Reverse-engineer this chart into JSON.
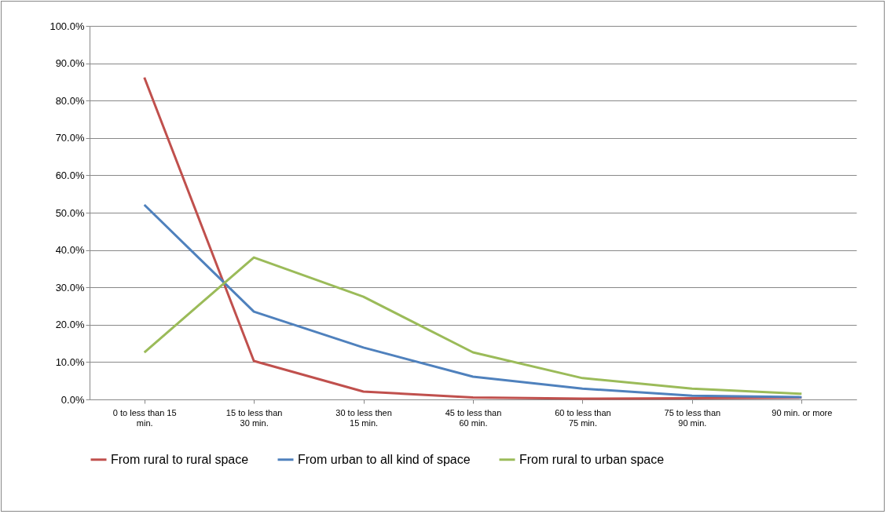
{
  "chart_data": {
    "type": "line",
    "categories": [
      "0 to less than 15 min.",
      "15 to less than 30 min.",
      "30 to less then 15 min.",
      "45 to less than 60 min.",
      "60 to less than 75 min.",
      "75 to less than 90 min.",
      "90 min. or more"
    ],
    "series": [
      {
        "name": "From rural to rural space",
        "color": "#c0504d",
        "values": [
          86.2,
          10.3,
          2.1,
          0.5,
          0.2,
          0.3,
          0.5
        ]
      },
      {
        "name": "From urban to all kind of space",
        "color": "#4f81bd",
        "values": [
          52.1,
          23.5,
          13.9,
          6.1,
          2.9,
          1.0,
          0.6
        ]
      },
      {
        "name": "From rural to urban space",
        "color": "#9bbb59",
        "values": [
          12.6,
          38.0,
          27.5,
          12.6,
          5.7,
          2.9,
          1.5
        ]
      }
    ],
    "ylim": [
      0,
      100
    ],
    "yticks": [
      {
        "value": 0,
        "label": "0.0%"
      },
      {
        "value": 10,
        "label": "10.0%"
      },
      {
        "value": 20,
        "label": "20.0%"
      },
      {
        "value": 30,
        "label": "30.0%"
      },
      {
        "value": 40,
        "label": "40.0%"
      },
      {
        "value": 50,
        "label": "50.0%"
      },
      {
        "value": 60,
        "label": "60.0%"
      },
      {
        "value": 70,
        "label": "70.0%"
      },
      {
        "value": 80,
        "label": "80.0%"
      },
      {
        "value": 90,
        "label": "90.0%"
      },
      {
        "value": 100,
        "label": "100.0%"
      }
    ],
    "grid": "y",
    "legend": "bottom",
    "marker": "none",
    "line_style": "solid"
  }
}
